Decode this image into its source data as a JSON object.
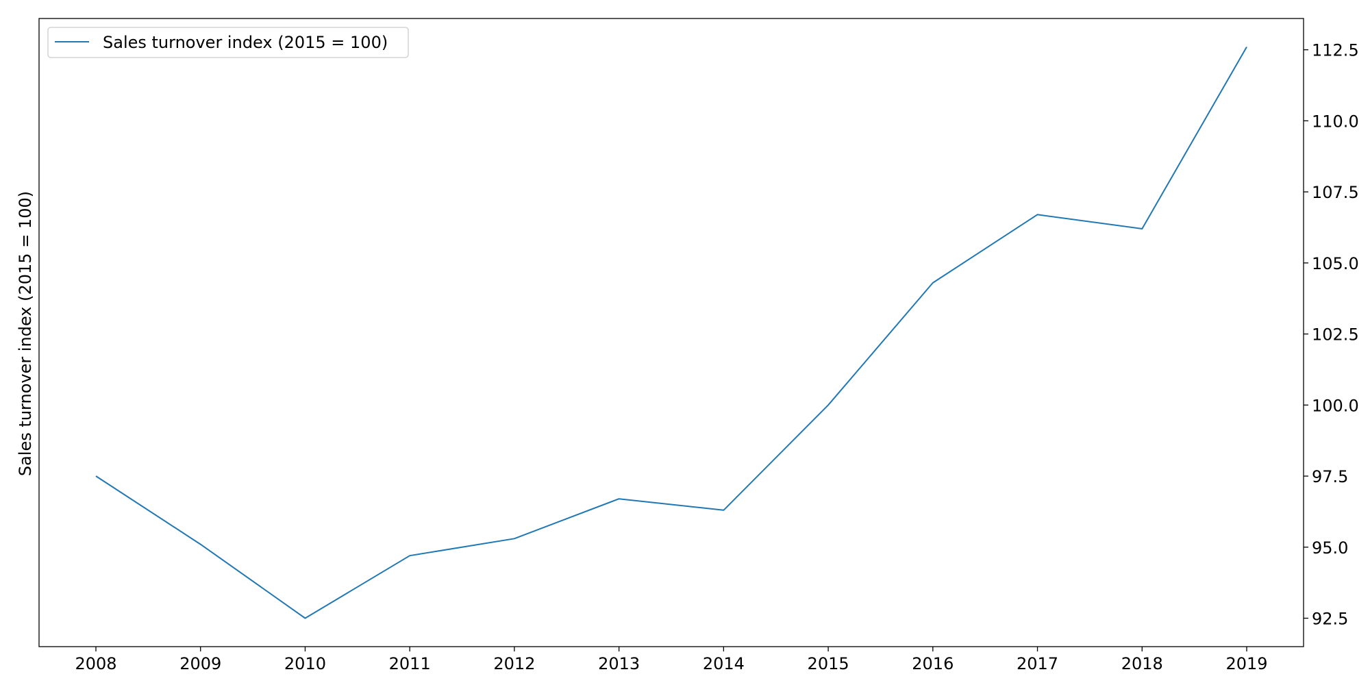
{
  "chart_data": {
    "type": "line",
    "title": "",
    "xlabel": "",
    "ylabel": "Sales turnover index (2015 = 100)",
    "y_axis_side": "right",
    "x": [
      "2008",
      "2009",
      "2010",
      "2011",
      "2012",
      "2013",
      "2014",
      "2015",
      "2016",
      "2017",
      "2018",
      "2019"
    ],
    "series": [
      {
        "name": "Sales turnover index (2015 = 100)",
        "color": "#1f77b4",
        "values": [
          97.5,
          95.1,
          92.5,
          94.7,
          95.3,
          96.7,
          96.3,
          100.0,
          104.3,
          106.7,
          106.2,
          112.6
        ]
      }
    ],
    "yticks": [
      "92.5",
      "95.0",
      "97.5",
      "100.0",
      "102.5",
      "105.0",
      "107.5",
      "110.0",
      "112.5"
    ],
    "ylim": [
      91.5,
      113.6
    ],
    "grid": false,
    "legend_position": "top-left"
  }
}
